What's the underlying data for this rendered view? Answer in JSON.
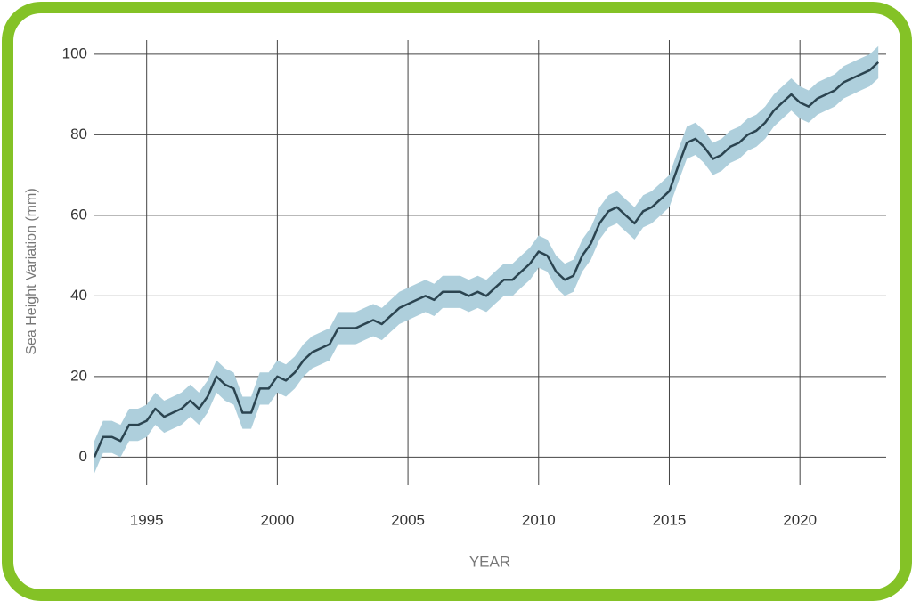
{
  "chart_data": {
    "type": "line",
    "xlabel": "YEAR",
    "ylabel": "Sea Height Variation (mm)",
    "x": [
      1993.0,
      1993.33,
      1993.67,
      1994.0,
      1994.33,
      1994.67,
      1995.0,
      1995.33,
      1995.67,
      1996.0,
      1996.33,
      1996.67,
      1997.0,
      1997.33,
      1997.67,
      1998.0,
      1998.33,
      1998.67,
      1999.0,
      1999.33,
      1999.67,
      2000.0,
      2000.33,
      2000.67,
      2001.0,
      2001.33,
      2001.67,
      2002.0,
      2002.33,
      2002.67,
      2003.0,
      2003.33,
      2003.67,
      2004.0,
      2004.33,
      2004.67,
      2005.0,
      2005.33,
      2005.67,
      2006.0,
      2006.33,
      2006.67,
      2007.0,
      2007.33,
      2007.67,
      2008.0,
      2008.33,
      2008.67,
      2009.0,
      2009.33,
      2009.67,
      2010.0,
      2010.33,
      2010.67,
      2011.0,
      2011.33,
      2011.67,
      2012.0,
      2012.33,
      2012.67,
      2013.0,
      2013.33,
      2013.67,
      2014.0,
      2014.33,
      2014.67,
      2015.0,
      2015.33,
      2015.67,
      2016.0,
      2016.33,
      2016.67,
      2017.0,
      2017.33,
      2017.67,
      2018.0,
      2018.33,
      2018.67,
      2019.0,
      2019.33,
      2019.67,
      2020.0,
      2020.33,
      2020.67,
      2021.0,
      2021.33,
      2021.67,
      2022.0,
      2022.33,
      2022.67,
      2023.0
    ],
    "series": [
      {
        "color": "#2b4450",
        "band_color": "#aecfdc",
        "error": 4,
        "values": [
          0,
          5,
          5,
          4,
          8,
          8,
          9,
          12,
          10,
          11,
          12,
          14,
          12,
          15,
          20,
          18,
          17,
          11,
          11,
          17,
          17,
          20,
          19,
          21,
          24,
          26,
          27,
          28,
          32,
          32,
          32,
          33,
          34,
          33,
          35,
          37,
          38,
          39,
          40,
          39,
          41,
          41,
          41,
          40,
          41,
          40,
          42,
          44,
          44,
          46,
          48,
          51,
          50,
          46,
          44,
          45,
          50,
          53,
          58,
          61,
          62,
          60,
          58,
          61,
          62,
          64,
          66,
          72,
          78,
          79,
          77,
          74,
          75,
          77,
          78,
          80,
          81,
          83,
          86,
          88,
          90,
          88,
          87,
          89,
          90,
          91,
          93,
          94,
          95,
          96,
          98
        ]
      }
    ],
    "xlim": [
      1993,
      2023.3
    ],
    "xticks": [
      1995,
      2000,
      2005,
      2010,
      2015,
      2020
    ],
    "ylim": [
      -7,
      103.5
    ],
    "yticks": [
      0,
      20,
      40,
      60,
      80,
      100
    ],
    "grid": true
  }
}
